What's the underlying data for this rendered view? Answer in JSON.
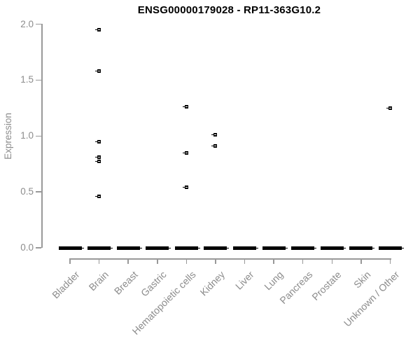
{
  "chart_data": {
    "type": "scatter",
    "variant": "boxplot-strip (R base style, expression per tissue)",
    "title": "ENSG00000179028 - RP11-363G10.2",
    "xlabel": "",
    "ylabel": "Expression",
    "ylim": [
      0.0,
      2.0
    ],
    "ytick_labels": [
      "0.0",
      "0.5",
      "1.0",
      "1.5",
      "2.0"
    ],
    "ytick_values": [
      0.0,
      0.5,
      1.0,
      1.5,
      2.0
    ],
    "grid": false,
    "legend_position": "none",
    "categories": [
      "Bladder",
      "Brain",
      "Breast",
      "Gastric",
      "Hematopoietic cells",
      "Kidney",
      "Liver",
      "Lung",
      "Pancreas",
      "Prostate",
      "Skin",
      "Unknown / Other"
    ],
    "series": [
      {
        "category": "Bladder",
        "zero_cluster": 0.0,
        "points": []
      },
      {
        "category": "Brain",
        "zero_cluster": 0.0,
        "points": [
          1.95,
          1.58,
          0.95,
          0.81,
          0.77,
          0.46
        ]
      },
      {
        "category": "Breast",
        "zero_cluster": 0.0,
        "points": []
      },
      {
        "category": "Gastric",
        "zero_cluster": 0.0,
        "points": []
      },
      {
        "category": "Hematopoietic cells",
        "zero_cluster": 0.0,
        "points": [
          1.26,
          0.85,
          0.54
        ]
      },
      {
        "category": "Kidney",
        "zero_cluster": 0.0,
        "points": [
          1.01,
          0.91
        ]
      },
      {
        "category": "Liver",
        "zero_cluster": 0.0,
        "points": []
      },
      {
        "category": "Lung",
        "zero_cluster": 0.0,
        "points": []
      },
      {
        "category": "Pancreas",
        "zero_cluster": 0.0,
        "points": []
      },
      {
        "category": "Prostate",
        "zero_cluster": 0.0,
        "points": []
      },
      {
        "category": "Skin",
        "zero_cluster": 0.0,
        "points": []
      },
      {
        "category": "Unknown / Other",
        "zero_cluster": 0.0,
        "points": [
          1.25
        ]
      }
    ],
    "note": "Thick black bar at 0.0 in every category represents a dense cluster of zero-expression samples; small open squares are individual non-zero samples",
    "colors": {
      "points": "#000000",
      "zero_bar": "#000000",
      "axis": "#999999",
      "tick_labels": "#8c8c8c",
      "title": "#000000",
      "background": "#ffffff"
    }
  }
}
